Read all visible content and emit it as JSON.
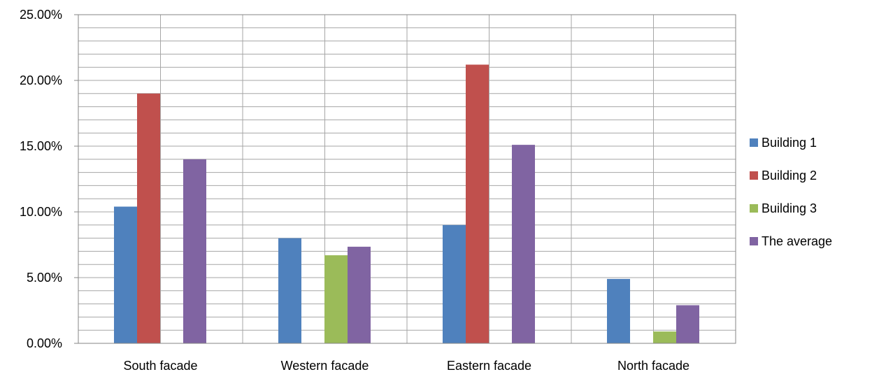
{
  "chart_data": {
    "type": "bar",
    "categories": [
      "South facade",
      "Western facade",
      "Eastern facade",
      "North facade"
    ],
    "series": [
      {
        "name": "Building 1",
        "color": "#4F81BD",
        "values": [
          0.104,
          0.08,
          0.09,
          0.049
        ]
      },
      {
        "name": "Building 2",
        "color": "#C0504D",
        "values": [
          0.19,
          0.0,
          0.212,
          0.0
        ]
      },
      {
        "name": "Building 3",
        "color": "#9BBB59",
        "values": [
          0.0,
          0.067,
          0.0,
          0.009
        ]
      },
      {
        "name": "The average",
        "color": "#8064A2",
        "values": [
          0.14,
          0.0735,
          0.151,
          0.029
        ]
      }
    ],
    "yticks": [
      "0.00%",
      "5.00%",
      "10.00%",
      "15.00%",
      "20.00%",
      "25.00%"
    ],
    "ylim": [
      0,
      0.25
    ],
    "ytick_step": 0.05,
    "minor_grid_step": 0.01,
    "grid": true,
    "vertical_grid": true,
    "legend_position": "right",
    "title": "",
    "xlabel": "",
    "ylabel": ""
  }
}
